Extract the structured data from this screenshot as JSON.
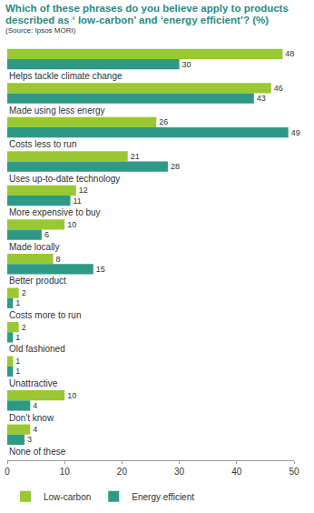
{
  "chart_data": {
    "type": "bar",
    "orientation": "horizontal",
    "title": "Which of these phrases do you believe apply to products described as ‘ low-carbon’ and ‘energy efficient’? (%)",
    "subtitle": "(Source: Ipsos MORI)",
    "categories": [
      "Helps tackle climate change",
      "Made using less energy",
      "Costs less to run",
      "Uses up-to-date technology",
      "More expensive to buy",
      "Made locally",
      "Better product",
      "Costs more to run",
      "Old fashioned",
      "Unattractive",
      "Don't know",
      "None of these"
    ],
    "series": [
      {
        "name": "Low-carbon",
        "color": "#99c832",
        "values": [
          48,
          46,
          26,
          21,
          12,
          10,
          8,
          2,
          2,
          1,
          10,
          4
        ]
      },
      {
        "name": "Energy efficient",
        "color": "#2e9a86",
        "values": [
          30,
          43,
          49,
          28,
          11,
          6,
          15,
          1,
          1,
          1,
          4,
          3
        ]
      }
    ],
    "xlim": [
      0,
      50
    ],
    "xticks": [
      0,
      10,
      20,
      30,
      40,
      50
    ],
    "grid": false,
    "data_labels": true,
    "legend": "bottom left",
    "tick_labels": "x"
  }
}
